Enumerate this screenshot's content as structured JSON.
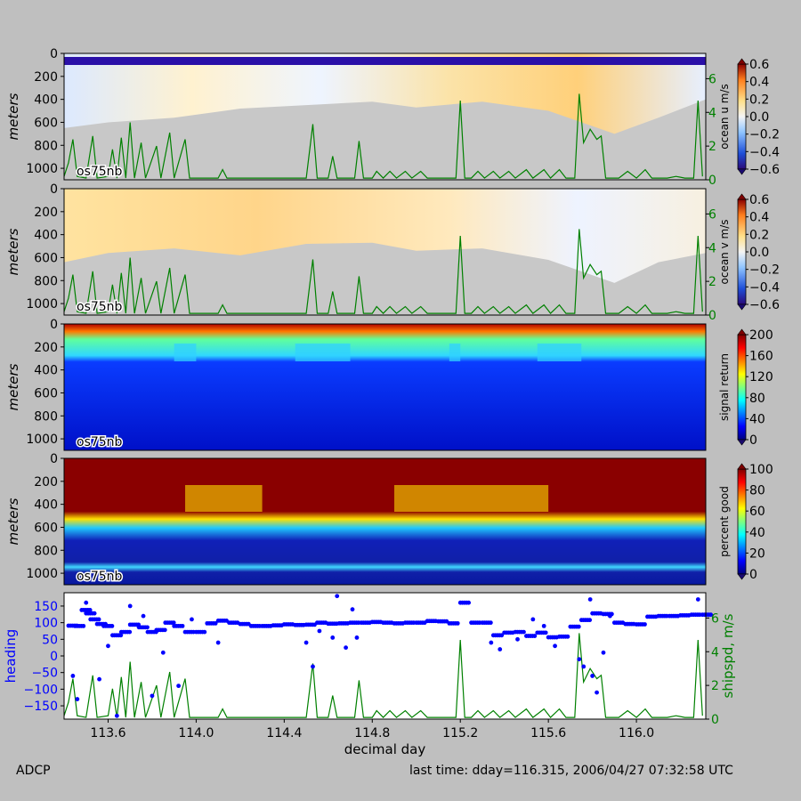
{
  "footer": {
    "left": "ADCP",
    "right": "last time: dday=116.315,  2006/04/27 07:32:58 UTC"
  },
  "chart_data": [
    {
      "type": "heatmap",
      "panel": "ocean-u",
      "ylabel": "meters",
      "yticks": [
        0,
        200,
        400,
        600,
        800,
        1000
      ],
      "ylim": [
        1100,
        0
      ],
      "label": "os75nb",
      "colorbar_label": "ocean u m/s",
      "colorbar_ticks": [
        "0.6",
        "0.4",
        "0.2",
        "0.0",
        "−0.2",
        "−0.4",
        "−0.6"
      ],
      "clim": [
        -0.6,
        0.6
      ],
      "right_axis_ticks": [
        "6",
        "4",
        "2",
        "0"
      ],
      "right_axis_lim": [
        0,
        7.5
      ],
      "colormap": "jet",
      "missing_color": "#c8c8c8"
    },
    {
      "type": "heatmap",
      "panel": "ocean-v",
      "ylabel": "meters",
      "yticks": [
        0,
        200,
        400,
        600,
        800,
        1000
      ],
      "ylim": [
        1100,
        0
      ],
      "label": "os75nb",
      "colorbar_label": "ocean v m/s",
      "colorbar_ticks": [
        "0.6",
        "0.4",
        "0.2",
        "0.0",
        "−0.2",
        "−0.4",
        "−0.6"
      ],
      "clim": [
        -0.6,
        0.6
      ],
      "right_axis_ticks": [
        "6",
        "4",
        "2",
        "0"
      ],
      "right_axis_lim": [
        0,
        7.5
      ],
      "colormap": "jet",
      "missing_color": "#c8c8c8"
    },
    {
      "type": "heatmap",
      "panel": "signal-return",
      "ylabel": "meters",
      "yticks": [
        0,
        200,
        400,
        600,
        800,
        1000
      ],
      "ylim": [
        1100,
        0
      ],
      "label": "os75nb",
      "colorbar_label": "signal return",
      "colorbar_ticks": [
        "200",
        "160",
        "120",
        "80",
        "40",
        "0"
      ],
      "clim": [
        0,
        200
      ],
      "colormap": "jet"
    },
    {
      "type": "heatmap",
      "panel": "percent-good",
      "ylabel": "meters",
      "yticks": [
        0,
        200,
        400,
        600,
        800,
        1000
      ],
      "ylim": [
        1100,
        0
      ],
      "label": "os75nb",
      "colorbar_label": "percent good",
      "colorbar_ticks": [
        "100",
        "80",
        "60",
        "40",
        "20",
        "0"
      ],
      "clim": [
        0,
        100
      ],
      "colormap": "jet"
    },
    {
      "type": "scatter",
      "panel": "heading-shipspd",
      "ylabel": "heading",
      "yticks": [
        "150",
        "100",
        "50",
        "0",
        "−50",
        "−100",
        "−150"
      ],
      "ylim": [
        -190,
        190
      ],
      "y2label": "shipspd, m/s",
      "y2ticks": [
        "6",
        "4",
        "2",
        "0"
      ],
      "y2lim": [
        0,
        7.5
      ],
      "xlabel": "decimal day",
      "xticks": [
        "113.6",
        "114.0",
        "114.4",
        "114.8",
        "115.2",
        "115.6",
        "116.0"
      ],
      "xlim": [
        113.4,
        116.315
      ],
      "heading_color": "#0000ff",
      "speed_color": "#008000",
      "heading_samples": [
        [
          113.42,
          91
        ],
        [
          113.45,
          90
        ],
        [
          113.48,
          138
        ],
        [
          113.5,
          128
        ],
        [
          113.52,
          110
        ],
        [
          113.55,
          96
        ],
        [
          113.58,
          90
        ],
        [
          113.62,
          62
        ],
        [
          113.66,
          72
        ],
        [
          113.7,
          94
        ],
        [
          113.74,
          86
        ],
        [
          113.78,
          72
        ],
        [
          113.82,
          78
        ],
        [
          113.86,
          100
        ],
        [
          113.9,
          90
        ],
        [
          113.95,
          72
        ],
        [
          114.0,
          72
        ],
        [
          114.05,
          98
        ],
        [
          114.1,
          106
        ],
        [
          114.15,
          100
        ],
        [
          114.2,
          96
        ],
        [
          114.25,
          90
        ],
        [
          114.3,
          90
        ],
        [
          114.35,
          92
        ],
        [
          114.4,
          95
        ],
        [
          114.45,
          93
        ],
        [
          114.5,
          94
        ],
        [
          114.55,
          100
        ],
        [
          114.6,
          97
        ],
        [
          114.65,
          98
        ],
        [
          114.7,
          100
        ],
        [
          114.75,
          100
        ],
        [
          114.8,
          102
        ],
        [
          114.85,
          100
        ],
        [
          114.9,
          98
        ],
        [
          114.95,
          100
        ],
        [
          115.0,
          100
        ],
        [
          115.05,
          105
        ],
        [
          115.1,
          104
        ],
        [
          115.15,
          98
        ],
        [
          115.2,
          160
        ],
        [
          115.25,
          100
        ],
        [
          115.3,
          100
        ],
        [
          115.35,
          62
        ],
        [
          115.4,
          70
        ],
        [
          115.45,
          72
        ],
        [
          115.5,
          60
        ],
        [
          115.55,
          70
        ],
        [
          115.6,
          56
        ],
        [
          115.65,
          58
        ],
        [
          115.7,
          88
        ],
        [
          115.75,
          108
        ],
        [
          115.8,
          128
        ],
        [
          115.85,
          126
        ],
        [
          115.9,
          100
        ],
        [
          115.95,
          96
        ],
        [
          116.0,
          95
        ],
        [
          116.05,
          118
        ],
        [
          116.1,
          120
        ],
        [
          116.15,
          120
        ],
        [
          116.2,
          122
        ],
        [
          116.25,
          124
        ],
        [
          116.3,
          124
        ]
      ],
      "heading_scatter": [
        [
          113.44,
          -60
        ],
        [
          113.46,
          -130
        ],
        [
          113.5,
          160
        ],
        [
          113.56,
          -70
        ],
        [
          113.6,
          30
        ],
        [
          113.64,
          -180
        ],
        [
          113.7,
          150
        ],
        [
          113.76,
          120
        ],
        [
          113.8,
          -120
        ],
        [
          113.85,
          10
        ],
        [
          113.92,
          -90
        ],
        [
          113.98,
          110
        ],
        [
          114.1,
          40
        ],
        [
          114.5,
          40
        ],
        [
          114.53,
          -32
        ],
        [
          114.56,
          75
        ],
        [
          114.62,
          55
        ],
        [
          114.64,
          180
        ],
        [
          114.68,
          25
        ],
        [
          114.71,
          140
        ],
        [
          114.73,
          55
        ],
        [
          115.34,
          40
        ],
        [
          115.38,
          20
        ],
        [
          115.46,
          50
        ],
        [
          115.53,
          110
        ],
        [
          115.58,
          90
        ],
        [
          115.63,
          30
        ],
        [
          115.74,
          -10
        ],
        [
          115.76,
          -32
        ],
        [
          115.79,
          170
        ],
        [
          115.8,
          -60
        ],
        [
          115.82,
          -110
        ],
        [
          115.85,
          10
        ],
        [
          115.88,
          120
        ],
        [
          116.28,
          170
        ]
      ],
      "speed_samples": [
        [
          113.4,
          0.2
        ],
        [
          113.42,
          1.0
        ],
        [
          113.44,
          2.4
        ],
        [
          113.46,
          0.2
        ],
        [
          113.5,
          0.1
        ],
        [
          113.53,
          2.6
        ],
        [
          113.55,
          0.1
        ],
        [
          113.6,
          0.2
        ],
        [
          113.62,
          1.8
        ],
        [
          113.64,
          0.1
        ],
        [
          113.66,
          2.5
        ],
        [
          113.68,
          0.1
        ],
        [
          113.7,
          3.4
        ],
        [
          113.72,
          0.1
        ],
        [
          113.75,
          2.2
        ],
        [
          113.77,
          0.1
        ],
        [
          113.82,
          2.0
        ],
        [
          113.84,
          0.1
        ],
        [
          113.88,
          2.8
        ],
        [
          113.9,
          0.1
        ],
        [
          113.95,
          2.4
        ],
        [
          113.97,
          0.1
        ],
        [
          114.1,
          0.1
        ],
        [
          114.12,
          0.6
        ],
        [
          114.14,
          0.1
        ],
        [
          114.3,
          0.1
        ],
        [
          114.5,
          0.1
        ],
        [
          114.53,
          3.3
        ],
        [
          114.55,
          0.1
        ],
        [
          114.6,
          0.1
        ],
        [
          114.62,
          1.4
        ],
        [
          114.64,
          0.1
        ],
        [
          114.72,
          0.1
        ],
        [
          114.74,
          2.3
        ],
        [
          114.76,
          0.1
        ],
        [
          114.8,
          0.1
        ],
        [
          114.82,
          0.5
        ],
        [
          114.85,
          0.1
        ],
        [
          114.88,
          0.5
        ],
        [
          114.91,
          0.1
        ],
        [
          114.95,
          0.5
        ],
        [
          114.98,
          0.1
        ],
        [
          115.02,
          0.5
        ],
        [
          115.05,
          0.1
        ],
        [
          115.1,
          0.1
        ],
        [
          115.18,
          0.1
        ],
        [
          115.2,
          4.7
        ],
        [
          115.22,
          0.1
        ],
        [
          115.25,
          0.1
        ],
        [
          115.28,
          0.5
        ],
        [
          115.31,
          0.1
        ],
        [
          115.35,
          0.5
        ],
        [
          115.38,
          0.1
        ],
        [
          115.42,
          0.5
        ],
        [
          115.45,
          0.1
        ],
        [
          115.5,
          0.6
        ],
        [
          115.53,
          0.1
        ],
        [
          115.58,
          0.6
        ],
        [
          115.61,
          0.1
        ],
        [
          115.65,
          0.6
        ],
        [
          115.68,
          0.1
        ],
        [
          115.72,
          0.1
        ],
        [
          115.74,
          5.1
        ],
        [
          115.76,
          2.2
        ],
        [
          115.79,
          3.0
        ],
        [
          115.82,
          2.4
        ],
        [
          115.84,
          2.6
        ],
        [
          115.86,
          0.1
        ],
        [
          115.92,
          0.1
        ],
        [
          115.96,
          0.5
        ],
        [
          116.0,
          0.1
        ],
        [
          116.04,
          0.6
        ],
        [
          116.07,
          0.1
        ],
        [
          116.14,
          0.1
        ],
        [
          116.18,
          0.2
        ],
        [
          116.22,
          0.1
        ],
        [
          116.26,
          0.1
        ],
        [
          116.28,
          4.7
        ],
        [
          116.3,
          0.2
        ]
      ]
    }
  ]
}
